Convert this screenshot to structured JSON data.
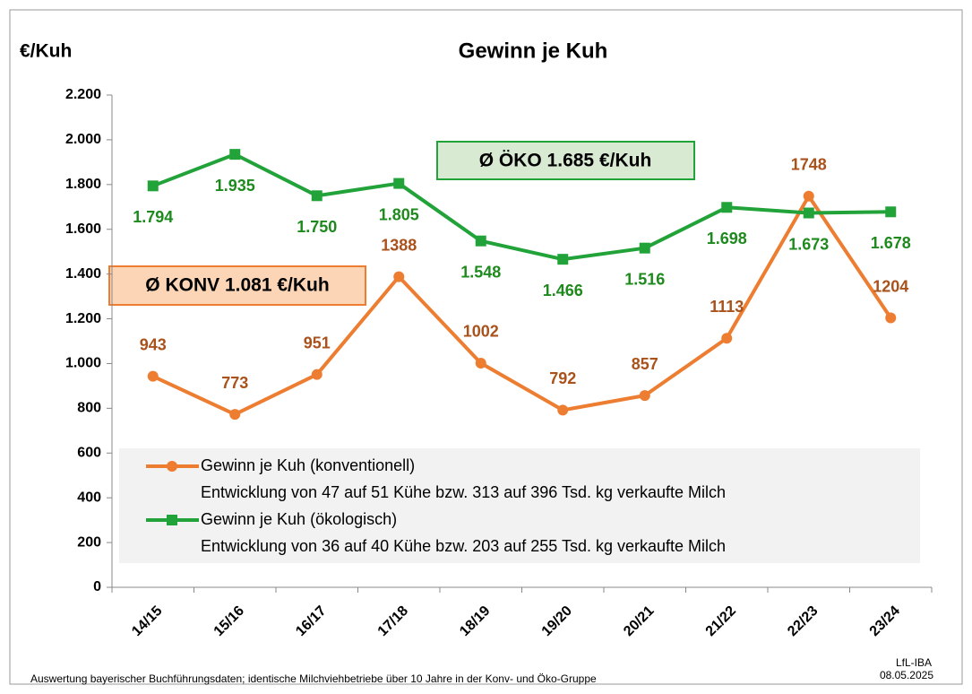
{
  "chart_data": {
    "type": "line",
    "title": "Gewinn je Kuh",
    "y_label": "€/Kuh",
    "categories": [
      "14/15",
      "15/16",
      "16/17",
      "17/18",
      "18/19",
      "19/20",
      "20/21",
      "21/22",
      "22/23",
      "23/24"
    ],
    "series": [
      {
        "name": "Gewinn je Kuh (konventionell)",
        "description": "Entwicklung von 47 auf 51 Kühe bzw. 313 auf 396 Tsd. kg verkaufte Milch",
        "color": "#ed7d31",
        "label_color": "#a9521c",
        "marker": "circle",
        "values": [
          943,
          773,
          951,
          1388,
          1002,
          792,
          857,
          1113,
          1748,
          1204
        ]
      },
      {
        "name": "Gewinn je Kuh (ökologisch)",
        "description": "Entwicklung von 36 auf 40 Kühe bzw. 203 auf 255 Tsd. kg verkaufte Milch",
        "color": "#22a33a",
        "label_color": "#1e8a1e",
        "marker": "square",
        "values": [
          1794,
          1935,
          1750,
          1805,
          1548,
          1466,
          1516,
          1698,
          1673,
          1678
        ],
        "value_labels": [
          "1.794",
          "1.935",
          "1.750",
          "1.805",
          "1.548",
          "1.466",
          "1.516",
          "1.698",
          "1.673",
          "1.678"
        ]
      }
    ],
    "ylim": [
      0,
      2200
    ],
    "yticks": [
      0,
      200,
      400,
      600,
      800,
      {
        "value": 1000,
        "label": "1.000"
      },
      {
        "value": 1200,
        "label": "1.200"
      },
      {
        "value": 1400,
        "label": "1.400"
      },
      {
        "value": 1600,
        "label": "1.600"
      },
      {
        "value": 1800,
        "label": "1.800"
      },
      {
        "value": 2000,
        "label": "2.000"
      },
      {
        "value": 2200,
        "label": "2.200"
      }
    ],
    "annotations": [
      "Ø ÖKO 1.685 €/Kuh",
      "Ø KONV 1.081 €/Kuh"
    ],
    "footnote": "Auswertung bayerischer Buchführungsdaten; identische Milchviehbetriebe über 10 Jahre in der Konv- und Öko-Gruppe",
    "source": "LfL-IBA",
    "date": "08.05.2025"
  }
}
